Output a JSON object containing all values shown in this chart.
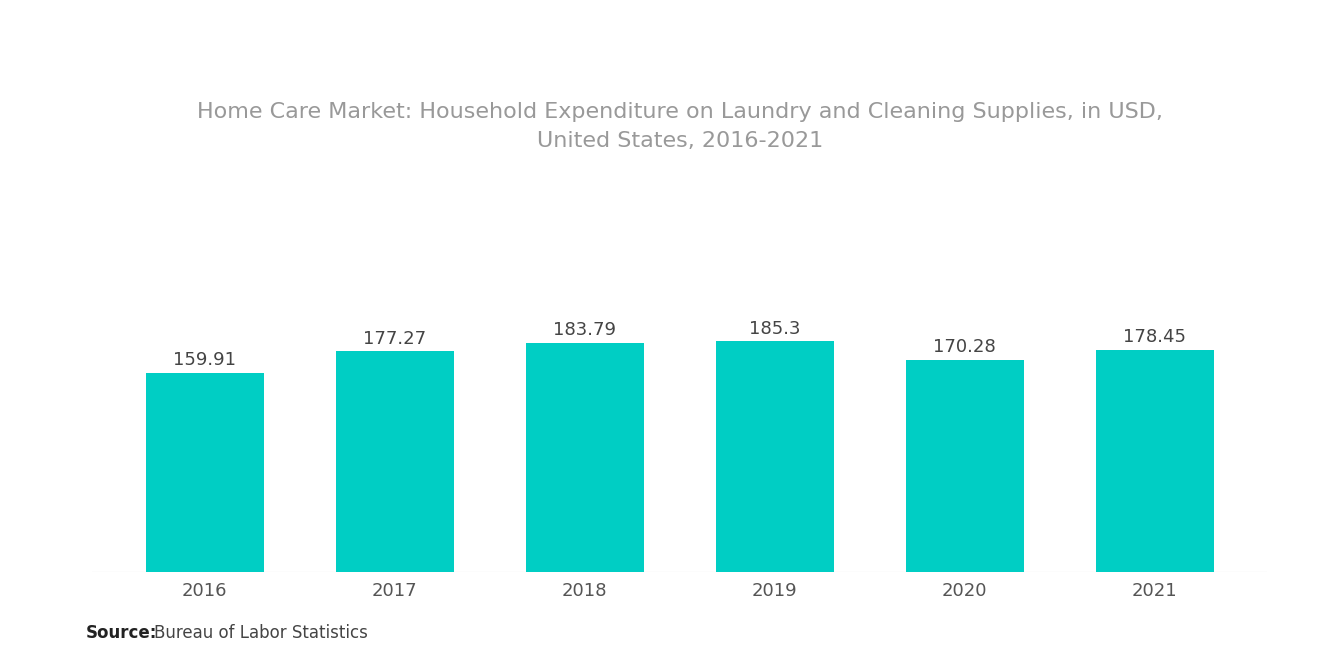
{
  "title": "Home Care Market: Household Expenditure on Laundry and Cleaning Supplies, in USD,\nUnited States, 2016-2021",
  "categories": [
    "2016",
    "2017",
    "2018",
    "2019",
    "2020",
    "2021"
  ],
  "values": [
    159.91,
    177.27,
    183.79,
    185.3,
    170.28,
    178.45
  ],
  "bar_color": "#00CEC4",
  "background_color": "#ffffff",
  "source_label": "Source:",
  "source_text": "Bureau of Labor Statistics",
  "title_fontsize": 16,
  "label_fontsize": 13,
  "tick_fontsize": 13,
  "source_fontsize": 12,
  "title_color": "#999999",
  "tick_color": "#555555",
  "label_color": "#444444",
  "ylim": [
    0,
    310
  ],
  "bar_width": 0.62
}
